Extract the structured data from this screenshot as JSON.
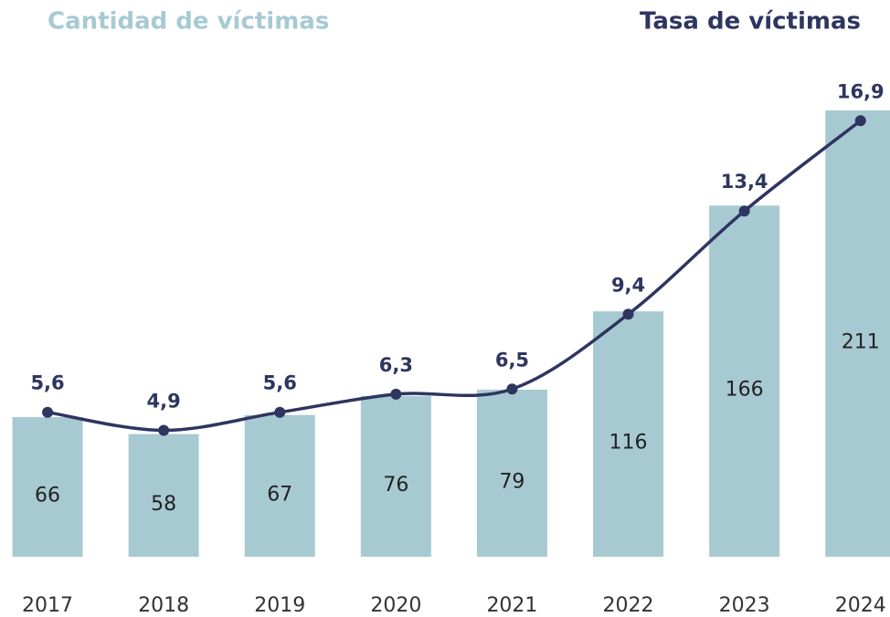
{
  "chart_data": {
    "type": "bar_line",
    "categories": [
      "2017",
      "2018",
      "2019",
      "2020",
      "2021",
      "2022",
      "2023",
      "2024"
    ],
    "series": [
      {
        "name": "Cantidad de víctimas",
        "color": "#a7cad2",
        "type": "bar",
        "values": [
          66,
          58,
          67,
          76,
          79,
          116,
          166,
          211
        ]
      },
      {
        "name": "Tasa de víctimas",
        "color": "#2e3560",
        "type": "line",
        "axis": "y2",
        "values": [
          5.6,
          4.9,
          5.6,
          6.3,
          6.5,
          9.4,
          13.4,
          16.9
        ],
        "value_labels": [
          "5,6",
          "4,9",
          "5,6",
          "6,3",
          "6,5",
          "9,4",
          "13,4",
          "16,9"
        ]
      }
    ],
    "ylim": [
      0,
      250
    ],
    "y2lim": [
      0,
      20.5
    ]
  }
}
